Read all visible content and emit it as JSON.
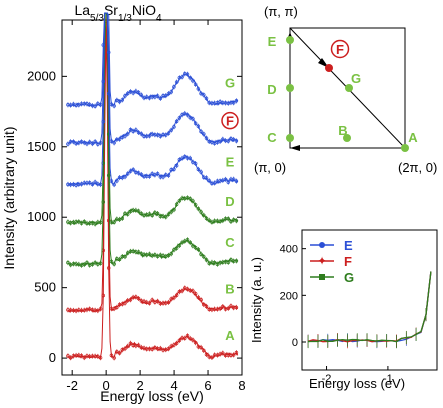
{
  "colors": {
    "red": "#cc1f1f",
    "green": "#2e7d1e",
    "blue": "#2b4fd6",
    "pt_green": "#7ac143"
  },
  "main_plot": {
    "title": "La5/3Sr1/3NiO4",
    "xlabel": "Energy loss (eV)",
    "ylabel": "Intensity (arbitrary unit)",
    "xlim": [
      -2.6,
      8.0
    ],
    "ylim": [
      -120,
      2400
    ],
    "x_ticks": [
      "-2",
      "0",
      "2",
      "4",
      "6",
      "8"
    ],
    "x_tick_values": [
      -2,
      0,
      2,
      4,
      6,
      8
    ],
    "y_ticks": [
      "0",
      "500",
      "1000",
      "1500",
      "2000"
    ],
    "y_tick_values": [
      0,
      500,
      1000,
      1500,
      2000
    ],
    "curves": [
      {
        "label": "A",
        "color": "red",
        "offset": 0
      },
      {
        "label": "B",
        "color": "red",
        "offset": 330
      },
      {
        "label": "C",
        "color": "green",
        "offset": 660
      },
      {
        "label": "D",
        "color": "green",
        "offset": 950
      },
      {
        "label": "E",
        "color": "blue",
        "offset": 1230
      },
      {
        "label": "F",
        "color": "blue",
        "offset": 1520,
        "circled": true
      },
      {
        "label": "G",
        "color": "blue",
        "offset": 1790
      }
    ]
  },
  "brillouin_zone": {
    "corners": {
      "top_left": "(π, π)",
      "bottom_left": "(π, 0)",
      "bottom_right": "(2π, 0)"
    },
    "points": [
      {
        "label": "E",
        "color": "pt_green"
      },
      {
        "label": "D",
        "color": "pt_green"
      },
      {
        "label": "C",
        "color": "pt_green"
      },
      {
        "label": "B",
        "color": "pt_green"
      },
      {
        "label": "A",
        "color": "pt_green"
      },
      {
        "label": "G",
        "color": "pt_green"
      },
      {
        "label": "F",
        "color": "red",
        "circled": true
      }
    ]
  },
  "inset_plot": {
    "xlabel": "Energy loss (eV)",
    "ylabel": "Intensity (a. u.)",
    "xlim": [
      -2.4,
      -0.2
    ],
    "ylim": [
      -120,
      480
    ],
    "x_ticks": [
      "-2",
      "-1"
    ],
    "x_tick_values": [
      -2,
      -1
    ],
    "y_ticks": [
      "0",
      "200",
      "400"
    ],
    "y_tick_values": [
      0,
      200,
      400
    ],
    "legend": [
      {
        "label": "E",
        "color": "blue",
        "marker": "circle"
      },
      {
        "label": "F",
        "color": "red",
        "marker": "star"
      },
      {
        "label": "G",
        "color": "green",
        "marker": "square"
      }
    ]
  }
}
